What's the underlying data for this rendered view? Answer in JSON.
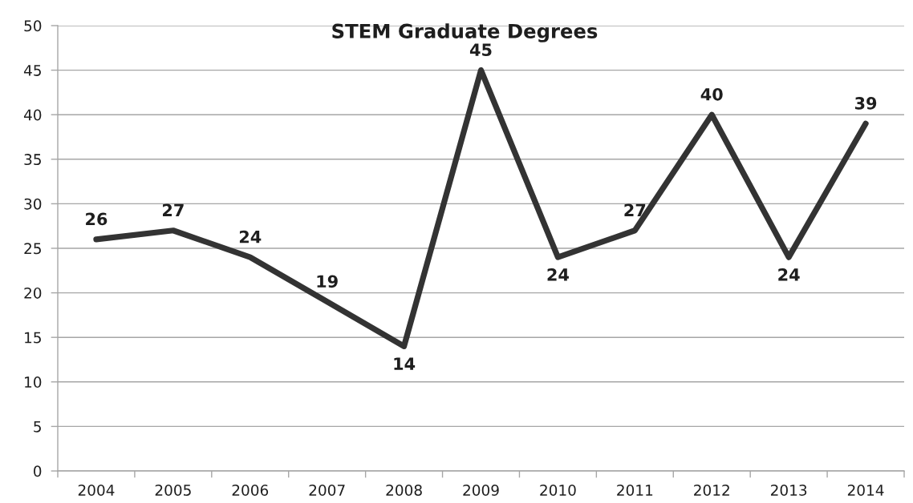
{
  "chart_data": {
    "type": "line",
    "title": "STEM Graduate Degrees",
    "categories": [
      "2004",
      "2005",
      "2006",
      "2007",
      "2008",
      "2009",
      "2010",
      "2011",
      "2012",
      "2013",
      "2014"
    ],
    "series": [
      {
        "color": "#333333",
        "values": [
          26,
          27,
          24,
          19,
          14,
          45,
          24,
          27,
          40,
          24,
          39
        ]
      }
    ],
    "ylim": [
      0,
      50
    ],
    "yticks": [
      0,
      5,
      10,
      15,
      20,
      25,
      30,
      35,
      40,
      45,
      50
    ],
    "grid": "y",
    "data_labels": true,
    "line_style": "solid"
  }
}
